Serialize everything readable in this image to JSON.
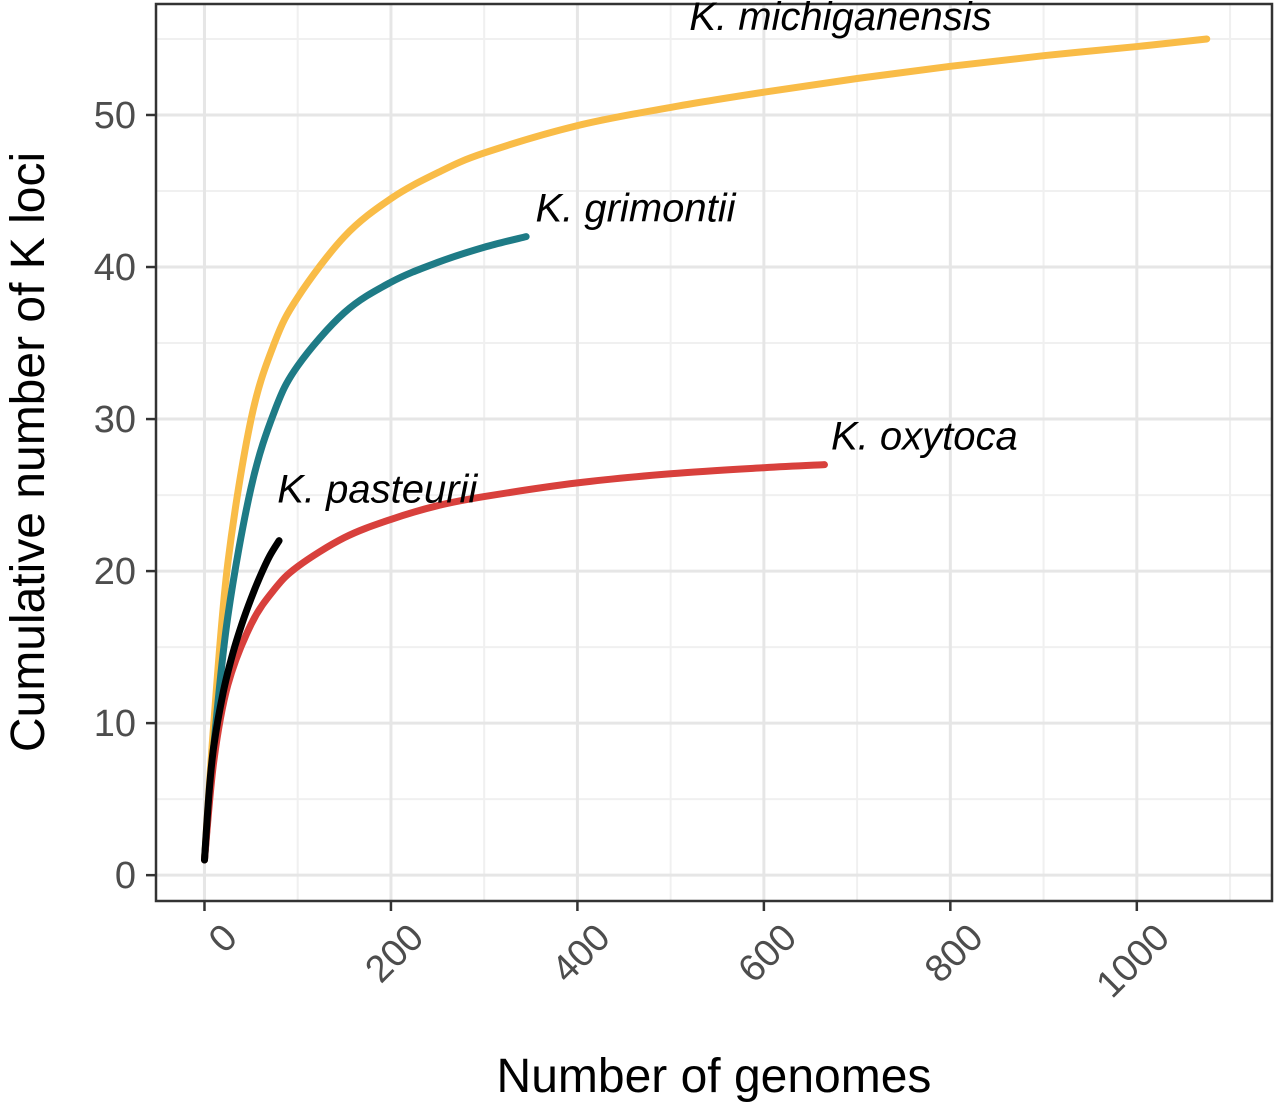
{
  "chart_data": {
    "type": "line",
    "title": "",
    "xlabel": "Number of genomes",
    "ylabel": "Cumulative number of K loci",
    "xlim": [
      -52,
      1145
    ],
    "ylim": [
      -1.7,
      57.3
    ],
    "x_ticks": [
      0,
      200,
      400,
      600,
      800,
      1000
    ],
    "y_ticks": [
      0,
      10,
      20,
      30,
      40,
      50
    ],
    "grid": true,
    "legend": "none",
    "series": [
      {
        "name": "K. michiganensis",
        "color": "#F9BC47",
        "x": [
          0,
          10,
          25,
          50,
          75,
          100,
          150,
          200,
          250,
          300,
          400,
          500,
          600,
          700,
          800,
          900,
          1000,
          1075
        ],
        "y": [
          1,
          10,
          20.5,
          30,
          35,
          38,
          42,
          44.5,
          46.2,
          47.5,
          49.3,
          50.5,
          51.5,
          52.4,
          53.2,
          53.9,
          54.5,
          55
        ]
      },
      {
        "name": "K. grimontii",
        "color": "#1E7B86",
        "x": [
          0,
          10,
          25,
          50,
          75,
          100,
          150,
          200,
          250,
          300,
          345
        ],
        "y": [
          1,
          8.5,
          17,
          25.5,
          30.5,
          33.5,
          37,
          39,
          40.3,
          41.3,
          42
        ]
      },
      {
        "name": "K. oxytoca",
        "color": "#D8403C",
        "x": [
          0,
          10,
          25,
          50,
          75,
          100,
          150,
          200,
          250,
          300,
          400,
          500,
          600,
          665
        ],
        "y": [
          1,
          7.5,
          12.5,
          16.5,
          18.8,
          20.3,
          22.2,
          23.4,
          24.3,
          24.9,
          25.8,
          26.4,
          26.8,
          27
        ]
      },
      {
        "name": "K. pasteurii",
        "color": "#000000",
        "x": [
          0,
          5,
          10,
          20,
          30,
          40,
          50,
          60,
          70,
          80
        ],
        "y": [
          1,
          5.5,
          8.5,
          12,
          14.5,
          16.5,
          18.2,
          19.7,
          21,
          22
        ]
      }
    ],
    "annotations": [
      {
        "text": "K. michiganensis",
        "x": 520,
        "y": 55.6,
        "series": 0
      },
      {
        "text": "K. grimontii",
        "x": 355,
        "y": 43,
        "series": 1
      },
      {
        "text": "K. oxytoca",
        "x": 672,
        "y": 28,
        "series": 2
      },
      {
        "text": "K. pasteurii",
        "x": 78,
        "y": 24.5,
        "series": 3
      }
    ]
  }
}
